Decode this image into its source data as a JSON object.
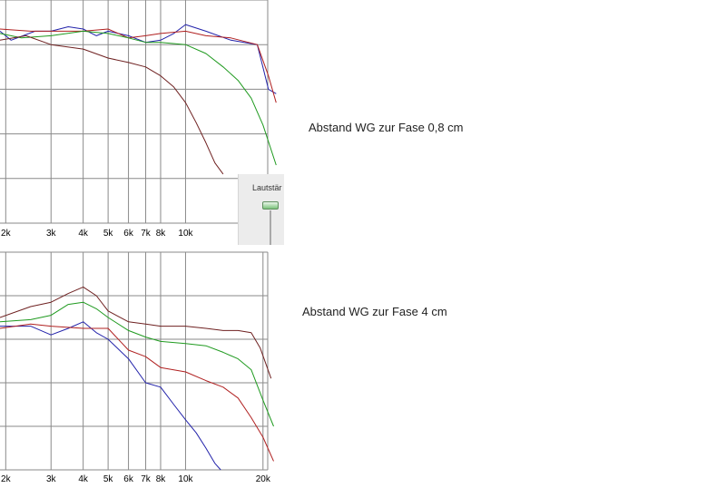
{
  "captions": {
    "top": "Abstand WG zur Fase 0,8 cm",
    "bottom": "Abstand WG zur Fase 4 cm"
  },
  "volume_panel": {
    "label": "Lautstär",
    "level": 0.95
  },
  "colors": {
    "blue": "#2222aa",
    "red": "#b02020",
    "green": "#1f9a1f",
    "brown": "#6e2020",
    "grid": "#8a8a8a"
  },
  "chart_data": [
    {
      "type": "line",
      "xscale": "log",
      "xlim": [
        1900,
        23000
      ],
      "ylim": [
        0,
        5
      ],
      "tick_labels": [
        "2k",
        "3k",
        "4k",
        "5k",
        "6k",
        "7k",
        "8k",
        "10k"
      ],
      "tick_values": [
        2000,
        3000,
        4000,
        5000,
        6000,
        7000,
        8000,
        10000
      ],
      "series": [
        {
          "color": "blue",
          "points": [
            [
              1900,
              4.3
            ],
            [
              2100,
              4.1
            ],
            [
              2600,
              4.3
            ],
            [
              3000,
              4.3
            ],
            [
              3500,
              4.4
            ],
            [
              4000,
              4.35
            ],
            [
              4500,
              4.2
            ],
            [
              5000,
              4.3
            ],
            [
              6000,
              4.2
            ],
            [
              7000,
              4.05
            ],
            [
              8000,
              4.1
            ],
            [
              9000,
              4.25
            ],
            [
              10000,
              4.45
            ],
            [
              12000,
              4.3
            ],
            [
              15000,
              4.1
            ],
            [
              19000,
              4.0
            ],
            [
              21000,
              3.0
            ],
            [
              22500,
              2.9
            ]
          ]
        },
        {
          "color": "red",
          "points": [
            [
              1900,
              4.35
            ],
            [
              2500,
              4.3
            ],
            [
              3000,
              4.3
            ],
            [
              4000,
              4.3
            ],
            [
              5000,
              4.35
            ],
            [
              6000,
              4.15
            ],
            [
              7000,
              4.2
            ],
            [
              8000,
              4.25
            ],
            [
              10000,
              4.3
            ],
            [
              12000,
              4.2
            ],
            [
              15000,
              4.15
            ],
            [
              19000,
              4.0
            ],
            [
              21000,
              3.3
            ],
            [
              22500,
              2.7
            ]
          ]
        },
        {
          "color": "green",
          "points": [
            [
              1900,
              4.25
            ],
            [
              2300,
              4.15
            ],
            [
              3000,
              4.2
            ],
            [
              4000,
              4.3
            ],
            [
              5000,
              4.25
            ],
            [
              6000,
              4.15
            ],
            [
              7000,
              4.05
            ],
            [
              8000,
              4.05
            ],
            [
              10000,
              4.0
            ],
            [
              12000,
              3.8
            ],
            [
              14000,
              3.5
            ],
            [
              16000,
              3.2
            ],
            [
              18000,
              2.8
            ],
            [
              20000,
              2.2
            ],
            [
              22500,
              1.3
            ]
          ]
        },
        {
          "color": "brown",
          "points": [
            [
              1900,
              4.1
            ],
            [
              2400,
              4.2
            ],
            [
              3000,
              4.0
            ],
            [
              4000,
              3.9
            ],
            [
              5000,
              3.7
            ],
            [
              6000,
              3.6
            ],
            [
              7000,
              3.5
            ],
            [
              8000,
              3.3
            ],
            [
              9000,
              3.05
            ],
            [
              10000,
              2.7
            ],
            [
              11000,
              2.25
            ],
            [
              12000,
              1.8
            ],
            [
              13000,
              1.35
            ],
            [
              14000,
              1.1
            ]
          ]
        }
      ]
    },
    {
      "type": "line",
      "xscale": "log",
      "xlim": [
        1900,
        23000
      ],
      "ylim": [
        0,
        5
      ],
      "tick_labels": [
        "2k",
        "3k",
        "4k",
        "5k",
        "6k",
        "7k",
        "8k",
        "10k",
        "20k"
      ],
      "tick_values": [
        2000,
        3000,
        4000,
        5000,
        6000,
        7000,
        8000,
        10000,
        20000
      ],
      "series": [
        {
          "color": "blue",
          "points": [
            [
              1900,
              3.3
            ],
            [
              2500,
              3.3
            ],
            [
              3000,
              3.1
            ],
            [
              3500,
              3.25
            ],
            [
              4000,
              3.4
            ],
            [
              4500,
              3.15
            ],
            [
              5000,
              3.0
            ],
            [
              6000,
              2.55
            ],
            [
              7000,
              2.0
            ],
            [
              8000,
              1.9
            ],
            [
              9000,
              1.5
            ],
            [
              10000,
              1.15
            ],
            [
              11000,
              0.85
            ],
            [
              12000,
              0.5
            ],
            [
              13000,
              0.15
            ],
            [
              13700,
              0.0
            ]
          ]
        },
        {
          "color": "red",
          "points": [
            [
              1900,
              3.25
            ],
            [
              2500,
              3.35
            ],
            [
              3000,
              3.3
            ],
            [
              4000,
              3.25
            ],
            [
              5000,
              3.25
            ],
            [
              6000,
              2.75
            ],
            [
              7000,
              2.6
            ],
            [
              8000,
              2.35
            ],
            [
              10000,
              2.25
            ],
            [
              12000,
              2.05
            ],
            [
              14000,
              1.9
            ],
            [
              16000,
              1.65
            ],
            [
              18000,
              1.2
            ],
            [
              20000,
              0.75
            ],
            [
              22000,
              0.2
            ]
          ]
        },
        {
          "color": "green",
          "points": [
            [
              1900,
              3.4
            ],
            [
              2500,
              3.45
            ],
            [
              3000,
              3.55
            ],
            [
              3500,
              3.8
            ],
            [
              4000,
              3.85
            ],
            [
              4500,
              3.7
            ],
            [
              5000,
              3.5
            ],
            [
              6000,
              3.2
            ],
            [
              7000,
              3.05
            ],
            [
              8000,
              2.95
            ],
            [
              10000,
              2.9
            ],
            [
              12000,
              2.85
            ],
            [
              14000,
              2.7
            ],
            [
              16000,
              2.55
            ],
            [
              18000,
              2.3
            ],
            [
              20000,
              1.6
            ],
            [
              22000,
              1.0
            ]
          ]
        },
        {
          "color": "brown",
          "points": [
            [
              1900,
              3.5
            ],
            [
              2500,
              3.75
            ],
            [
              3000,
              3.85
            ],
            [
              3500,
              4.05
            ],
            [
              4000,
              4.2
            ],
            [
              4500,
              4.0
            ],
            [
              5000,
              3.65
            ],
            [
              6000,
              3.4
            ],
            [
              7000,
              3.35
            ],
            [
              8000,
              3.3
            ],
            [
              10000,
              3.3
            ],
            [
              12000,
              3.25
            ],
            [
              14000,
              3.2
            ],
            [
              16000,
              3.2
            ],
            [
              18000,
              3.15
            ],
            [
              19500,
              2.8
            ],
            [
              21500,
              2.1
            ]
          ]
        }
      ]
    }
  ]
}
